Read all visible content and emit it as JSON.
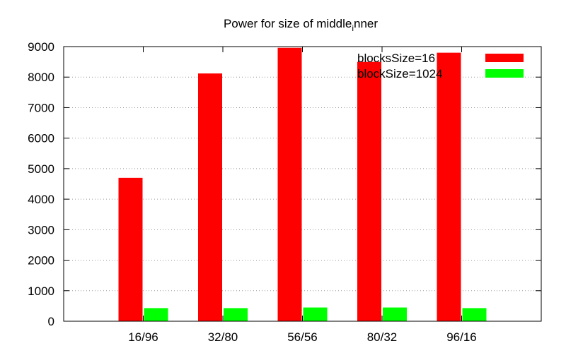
{
  "chart_data": {
    "type": "bar",
    "title": "Power for size of middle",
    "title_subscript": "i",
    "title_suffix": "nner",
    "categories": [
      "16/96",
      "32/80",
      "56/56",
      "80/32",
      "96/16"
    ],
    "series": [
      {
        "name": "blocksSize=16",
        "color": "#ff0000",
        "values": [
          4700,
          8120,
          8960,
          8500,
          8800
        ]
      },
      {
        "name": "blockSize=1024",
        "color": "#00ff00",
        "values": [
          430,
          430,
          450,
          450,
          430
        ]
      }
    ],
    "ylim": [
      0,
      9000
    ],
    "yticks": [
      0,
      1000,
      2000,
      3000,
      4000,
      5000,
      6000,
      7000,
      8000,
      9000
    ],
    "grid": true,
    "legend_position": "top-right"
  }
}
